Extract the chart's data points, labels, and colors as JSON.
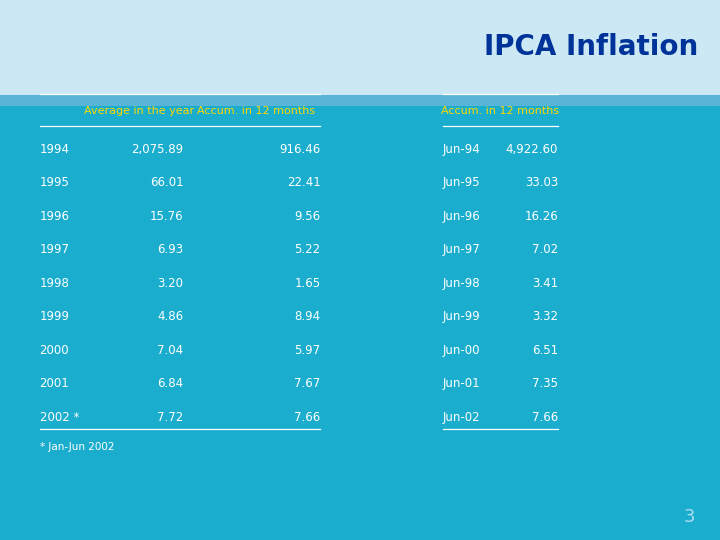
{
  "title": "IPCA Inflation",
  "title_color": "#003399",
  "header_bg": "#cce8f4",
  "body_bg": "#1aadce",
  "left_table_header": [
    "Average in the year",
    "Accum. in 12 months"
  ],
  "right_table_header": [
    "Accum. in 12 months"
  ],
  "left_table_rows": [
    [
      "1994",
      "2,075.89",
      "916.46"
    ],
    [
      "1995",
      "66.01",
      "22.41"
    ],
    [
      "1996",
      "15.76",
      "9.56"
    ],
    [
      "1997",
      "6.93",
      "5.22"
    ],
    [
      "1998",
      "3.20",
      "1.65"
    ],
    [
      "1999",
      "4.86",
      "8.94"
    ],
    [
      "2000",
      "7.04",
      "5.97"
    ],
    [
      "2001",
      "6.84",
      "7.67"
    ],
    [
      "2002 *",
      "7.72",
      "7.66"
    ]
  ],
  "right_table_rows": [
    [
      "Jun-94",
      "4,922.60"
    ],
    [
      "Jun-95",
      "33.03"
    ],
    [
      "Jun-96",
      "16.26"
    ],
    [
      "Jun-97",
      "7.02"
    ],
    [
      "Jun-98",
      "3.41"
    ],
    [
      "Jun-99",
      "3.32"
    ],
    [
      "Jun-00",
      "6.51"
    ],
    [
      "Jun-01",
      "7.35"
    ],
    [
      "Jun-02",
      "7.66"
    ]
  ],
  "footnote": "* Jan-Jun 2002",
  "page_number": "3",
  "text_color_data": "#FFFFFF",
  "text_color_header_row": "#FFD700",
  "text_color_footnote": "#FFFFFF",
  "text_color_page": "#AADDEE",
  "line_color": "#FFFFFF",
  "flag_green": "#009c3b",
  "flag_yellow": "#FFDF00",
  "flag_blue": "#002776",
  "header_stripe_color": "#5ab4d8"
}
